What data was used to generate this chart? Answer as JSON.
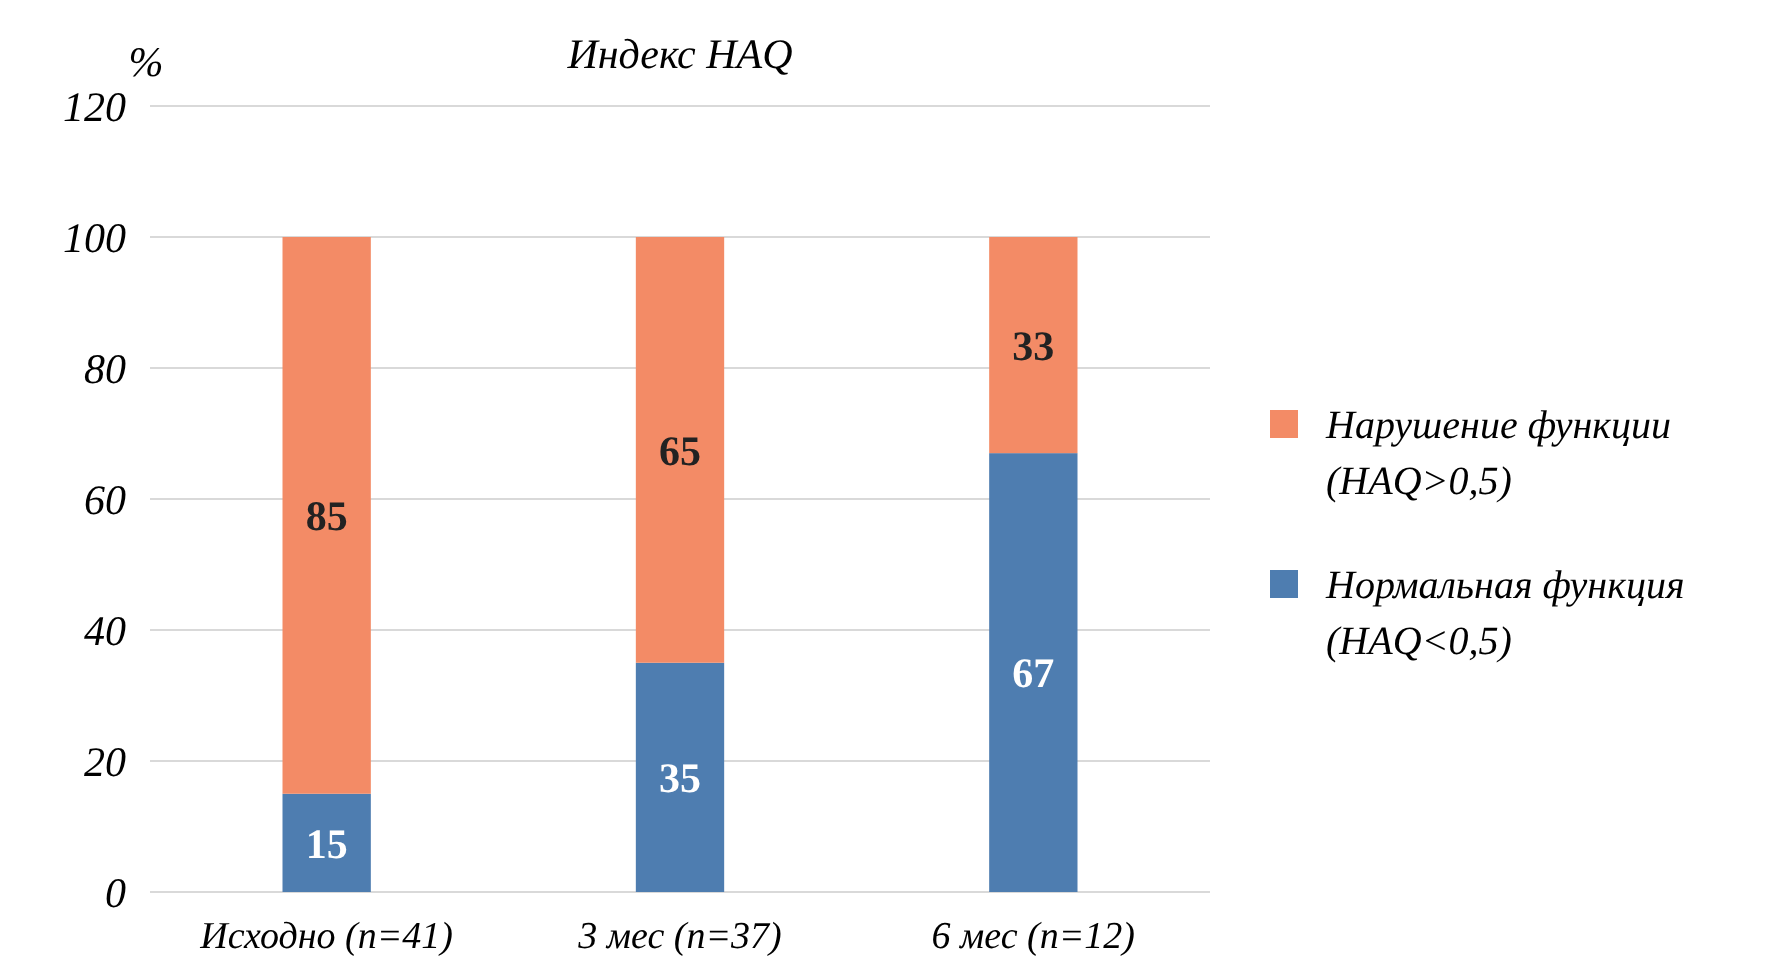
{
  "chart_data": {
    "type": "bar",
    "title": "Индекс HAQ",
    "ylabel": "%",
    "categories": [
      "Исходно (n=41)",
      "3 мес (n=37)",
      "6 мес (n=12)"
    ],
    "stacked": true,
    "series": [
      {
        "name": "Нормальная функция (HAQ<0,5)",
        "color": "#4e7db0",
        "values": [
          15,
          35,
          67
        ]
      },
      {
        "name": "Нарушение функции (HAQ>0,5)",
        "color": "#f38b66",
        "values": [
          85,
          65,
          33
        ]
      }
    ],
    "ylim": [
      0,
      120
    ],
    "yticks": [
      0,
      20,
      40,
      60,
      80,
      100,
      120
    ],
    "grid": "y",
    "legend": "right",
    "data_labels": true
  }
}
